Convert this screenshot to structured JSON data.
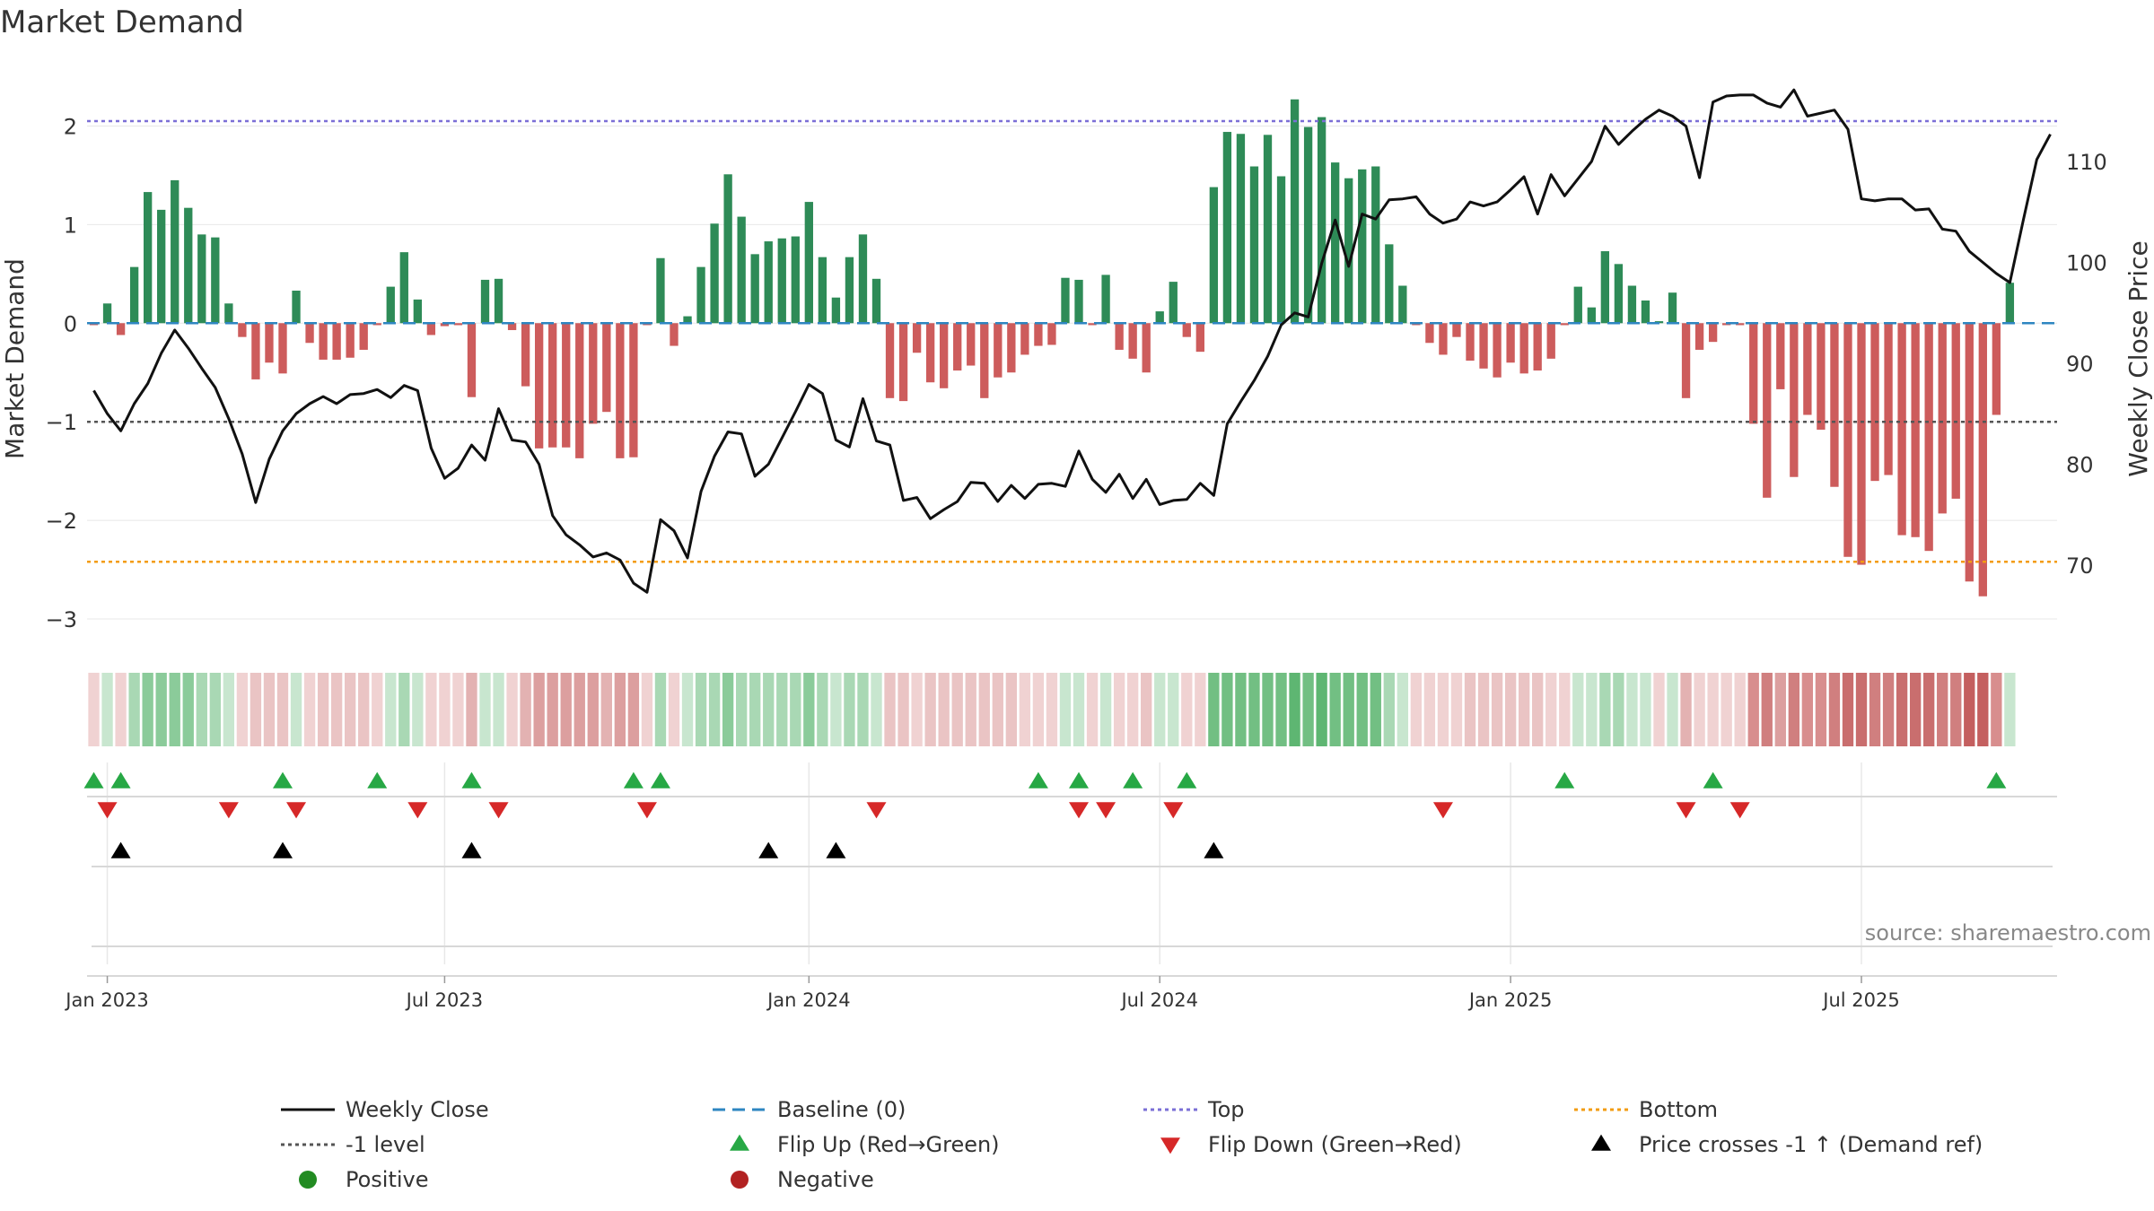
{
  "chart_data": {
    "type": "bar+line",
    "title": "Market Demand",
    "ylabel_left": "Market Demand",
    "ylabel_right": "Weekly Close Price",
    "ylim_left": [
      -3.2,
      2.55
    ],
    "ylim_right": [
      62.7,
      118.9
    ],
    "left_ticks": [
      {
        "v": 2,
        "label": "2"
      },
      {
        "v": 1,
        "label": "1"
      },
      {
        "v": 0,
        "label": "0"
      },
      {
        "v": -1,
        "label": "−1"
      },
      {
        "v": -2,
        "label": "−2"
      },
      {
        "v": -3,
        "label": "−3"
      }
    ],
    "right_ticks": [
      {
        "v": 110,
        "label": "110"
      },
      {
        "v": 100,
        "label": "100"
      },
      {
        "v": 90,
        "label": "90"
      },
      {
        "v": 80,
        "label": "80"
      },
      {
        "v": 70,
        "label": "70"
      }
    ],
    "x_ticks": [
      {
        "week": 1,
        "label": "Jan 2023"
      },
      {
        "week": 26,
        "label": "Jul 2023"
      },
      {
        "week": 53,
        "label": "Jan 2024"
      },
      {
        "week": 79,
        "label": "Jul 2024"
      },
      {
        "week": 105,
        "label": "Jan 2025"
      },
      {
        "week": 131,
        "label": "Jul 2025"
      }
    ],
    "n_weeks": 146,
    "reference_lines": {
      "top": 2.05,
      "bottom": -2.42,
      "minus_one": -1,
      "baseline": 0
    },
    "demand": [
      -0.02,
      0.2,
      -0.12,
      0.57,
      1.33,
      1.15,
      1.45,
      1.17,
      0.9,
      0.87,
      0.2,
      -0.14,
      -0.57,
      -0.4,
      -0.51,
      0.33,
      -0.2,
      -0.37,
      -0.37,
      -0.35,
      -0.27,
      -0.02,
      0.37,
      0.72,
      0.24,
      -0.12,
      -0.03,
      -0.02,
      -0.75,
      0.44,
      0.45,
      -0.07,
      -0.64,
      -1.27,
      -1.26,
      -1.26,
      -1.37,
      -1.02,
      -0.9,
      -1.37,
      -1.36,
      -0.02,
      0.66,
      -0.23,
      0.07,
      0.57,
      1.01,
      1.51,
      1.08,
      0.7,
      0.83,
      0.86,
      0.88,
      1.23,
      0.67,
      0.26,
      0.67,
      0.9,
      0.45,
      -0.76,
      -0.79,
      -0.3,
      -0.6,
      -0.66,
      -0.48,
      -0.43,
      -0.76,
      -0.55,
      -0.5,
      -0.32,
      -0.23,
      -0.22,
      0.46,
      0.44,
      -0.02,
      0.49,
      -0.27,
      -0.36,
      -0.5,
      0.12,
      0.42,
      -0.14,
      -0.29,
      1.38,
      1.94,
      1.92,
      1.59,
      1.91,
      1.49,
      2.27,
      1.99,
      2.09,
      1.63,
      1.47,
      1.56,
      1.59,
      0.8,
      0.38,
      -0.02,
      -0.2,
      -0.32,
      -0.14,
      -0.38,
      -0.46,
      -0.55,
      -0.4,
      -0.51,
      -0.48,
      -0.36,
      -0.02,
      0.37,
      0.16,
      0.73,
      0.6,
      0.38,
      0.23,
      0.02,
      0.31,
      -0.76,
      -0.27,
      -0.19,
      -0.02,
      -0.02,
      -1.02,
      -1.77,
      -0.67,
      -1.56,
      -0.93,
      -1.08,
      -1.66,
      -2.37,
      -2.45,
      -1.6,
      -1.54,
      -2.15,
      -2.17,
      -2.31,
      -1.93,
      -1.78,
      -2.62,
      -2.77,
      -0.93,
      0.41
    ],
    "price_weeks": [
      0,
      1,
      2,
      3,
      4,
      5,
      6,
      7,
      8,
      9,
      10,
      11,
      12,
      13,
      14,
      15,
      16,
      17,
      18,
      19,
      20,
      21,
      22,
      23,
      24,
      25,
      26,
      27,
      28,
      29,
      30,
      31,
      32,
      33,
      34,
      35,
      36,
      37,
      38,
      39,
      40,
      41,
      42,
      43,
      44,
      45,
      46,
      47,
      48,
      49,
      50,
      51,
      52,
      53,
      54,
      55,
      56,
      57,
      58,
      59,
      60,
      61,
      62,
      63,
      64,
      65,
      66,
      67,
      68,
      69,
      70,
      71,
      72,
      73,
      74,
      75,
      76,
      77,
      78,
      79,
      80,
      81,
      82,
      83,
      84,
      85,
      86,
      87,
      88,
      89,
      90,
      91,
      92,
      93,
      94,
      95,
      96,
      97,
      98,
      99,
      100,
      101,
      102,
      103,
      104,
      105,
      106,
      107,
      108,
      109,
      110,
      111,
      112,
      113,
      114,
      115,
      116,
      117,
      118,
      119,
      120,
      121,
      122,
      123,
      124,
      125,
      126,
      127,
      128,
      129,
      130,
      131,
      132,
      133,
      134,
      135,
      136,
      137,
      138,
      139,
      140,
      141,
      142,
      143,
      144,
      145
    ],
    "price": [
      87.3,
      85,
      83.3,
      86,
      88,
      91,
      93.3,
      91.5,
      89.5,
      87.6,
      84.5,
      81,
      76.2,
      80.5,
      83.3,
      85,
      86,
      86.7,
      86,
      86.9,
      87,
      87.4,
      86.6,
      87.8,
      87.3,
      81.6,
      78.6,
      79.6,
      81.9,
      80.4,
      85.5,
      82.4,
      82.2,
      80,
      74.9,
      73,
      72,
      70.8,
      71.2,
      70.5,
      68.2,
      67.3,
      74.5,
      73.4,
      70.7,
      77.3,
      80.8,
      83.2,
      83,
      78.8,
      80,
      82.6,
      85.2,
      87.9,
      87,
      82.4,
      81.7,
      86.5,
      82.3,
      81.9,
      76.4,
      76.7,
      74.6,
      75.5,
      76.3,
      78.2,
      78.1,
      76.3,
      77.9,
      76.6,
      78,
      78.1,
      77.8,
      81.3,
      78.5,
      77.2,
      79,
      76.6,
      78.5,
      76,
      76.4,
      76.5,
      78.1,
      76.9,
      84,
      86.2,
      88.3,
      90.7,
      93.8,
      95,
      94.6,
      99.9,
      104.2,
      99.6,
      104.8,
      104.3,
      106.2,
      106.3,
      106.5,
      104.8,
      103.9,
      104.3,
      106,
      105.6,
      106,
      107.2,
      108.5,
      104.8,
      108.7,
      106.6,
      108.3,
      110,
      113.5,
      111.7,
      113,
      114.2,
      115.1,
      114.5,
      113.5,
      108.4,
      115.9,
      116.5,
      116.6,
      116.6,
      115.8,
      115.4,
      117.1,
      114.5,
      114.8,
      115.1,
      113.2,
      106.3,
      106.1,
      106.3,
      106.3,
      105.2,
      105.3,
      103.3,
      103.1,
      101.1,
      100,
      98.9,
      98,
      104.2,
      110.2,
      112.7
    ],
    "strip_colors": [
      "#f0d2d2",
      "#c8e6cf",
      "#f0d2d2",
      "#a9d8b4",
      "#8bcb9a",
      "#8bcb9a",
      "#8bcb9a",
      "#8bcb9a",
      "#a9d8b4",
      "#a9d8b4",
      "#c8e6cf",
      "#f0d2d2",
      "#eac4c4",
      "#eac4c4",
      "#eac4c4",
      "#c8e6cf",
      "#f0d2d2",
      "#eac4c4",
      "#eac4c4",
      "#eac4c4",
      "#eac4c4",
      "#f0d2d2",
      "#c8e6cf",
      "#a9d8b4",
      "#c8e6cf",
      "#f0d2d2",
      "#f0d2d2",
      "#f0d2d2",
      "#e3b2b2",
      "#c8e6cf",
      "#c8e6cf",
      "#f0d2d2",
      "#e3b2b2",
      "#dc9f9f",
      "#dc9f9f",
      "#dc9f9f",
      "#dc9f9f",
      "#dc9f9f",
      "#e3b2b2",
      "#dc9f9f",
      "#dc9f9f",
      "#f0d2d2",
      "#a9d8b4",
      "#f0d2d2",
      "#c8e6cf",
      "#a9d8b4",
      "#a9d8b4",
      "#8bcb9a",
      "#a9d8b4",
      "#a9d8b4",
      "#a9d8b4",
      "#a9d8b4",
      "#a9d8b4",
      "#8bcb9a",
      "#a9d8b4",
      "#c8e6cf",
      "#a9d8b4",
      "#a9d8b4",
      "#c8e6cf",
      "#eac4c4",
      "#eac4c4",
      "#f0d2d2",
      "#eac4c4",
      "#eac4c4",
      "#eac4c4",
      "#eac4c4",
      "#eac4c4",
      "#eac4c4",
      "#eac4c4",
      "#f0d2d2",
      "#f0d2d2",
      "#f0d2d2",
      "#c8e6cf",
      "#c8e6cf",
      "#f0d2d2",
      "#c8e6cf",
      "#f0d2d2",
      "#f0d2d2",
      "#eac4c4",
      "#c8e6cf",
      "#c8e6cf",
      "#f0d2d2",
      "#f0d2d2",
      "#72bf83",
      "#72bf83",
      "#72bf83",
      "#72bf83",
      "#72bf83",
      "#72bf83",
      "#5eb672",
      "#72bf83",
      "#5eb672",
      "#72bf83",
      "#72bf83",
      "#72bf83",
      "#72bf83",
      "#a9d8b4",
      "#c8e6cf",
      "#f0d2d2",
      "#f0d2d2",
      "#f0d2d2",
      "#f0d2d2",
      "#eac4c4",
      "#eac4c4",
      "#eac4c4",
      "#eac4c4",
      "#eac4c4",
      "#eac4c4",
      "#f0d2d2",
      "#f0d2d2",
      "#c8e6cf",
      "#c8e6cf",
      "#a9d8b4",
      "#a9d8b4",
      "#c8e6cf",
      "#c8e6cf",
      "#f0d2d2",
      "#c8e6cf",
      "#e3b2b2",
      "#f0d2d2",
      "#f0d2d2",
      "#f0d2d2",
      "#f0d2d2",
      "#d88e8e",
      "#d07f7f",
      "#dc9f9f",
      "#d07f7f",
      "#d88e8e",
      "#d88e8e",
      "#d07f7f",
      "#c96e6e",
      "#c96e6e",
      "#d07f7f",
      "#d07f7f",
      "#c96e6e",
      "#c96e6e",
      "#c96e6e",
      "#d07f7f",
      "#d07f7f",
      "#c45f5f",
      "#c45f5f",
      "#d88e8e",
      "#c8e6cf"
    ],
    "flip_up_weeks": [
      0,
      2,
      14,
      21,
      28,
      40,
      42,
      70,
      73,
      77,
      81,
      109,
      120,
      141
    ],
    "flip_down_weeks": [
      1,
      10,
      15,
      24,
      30,
      41,
      58,
      73,
      75,
      80,
      100,
      118,
      122
    ],
    "price_cross_weeks": [
      2,
      14,
      28,
      50,
      55,
      83
    ],
    "source_text": "source: sharemaestro.com",
    "legend": [
      {
        "label": "Weekly Close",
        "kind": "line",
        "color": "#111111"
      },
      {
        "label": "Baseline (0)",
        "kind": "dash",
        "color": "#2e86c1"
      },
      {
        "label": "Top",
        "kind": "dot",
        "color": "#7b6fd6"
      },
      {
        "label": "Bottom",
        "kind": "dot",
        "color": "#f39c12"
      },
      {
        "label": "-1 level",
        "kind": "dot",
        "color": "#555555"
      },
      {
        "label": "Flip Up (Red→Green)",
        "kind": "tri-up",
        "color": "#27a845"
      },
      {
        "label": "Flip Down (Green→Red)",
        "kind": "tri-down",
        "color": "#d62828"
      },
      {
        "label": "Price crosses -1 ↑ (Demand ref)",
        "kind": "tri-up",
        "color": "#000000"
      },
      {
        "label": "Positive",
        "kind": "dot-circle",
        "color": "#228b22"
      },
      {
        "label": "Negative",
        "kind": "dot-circle",
        "color": "#b22222"
      }
    ],
    "colors": {
      "positive_bar": "#2e8b57",
      "negative_bar": "#cd5c5c",
      "price_line": "#111111",
      "top_line": "#7b6fd6",
      "bottom_line": "#f39c12",
      "minus_one_line": "#555555",
      "baseline": "#2e86c1",
      "flip_up": "#27a845",
      "flip_down": "#d62828",
      "cross": "#000000"
    }
  }
}
